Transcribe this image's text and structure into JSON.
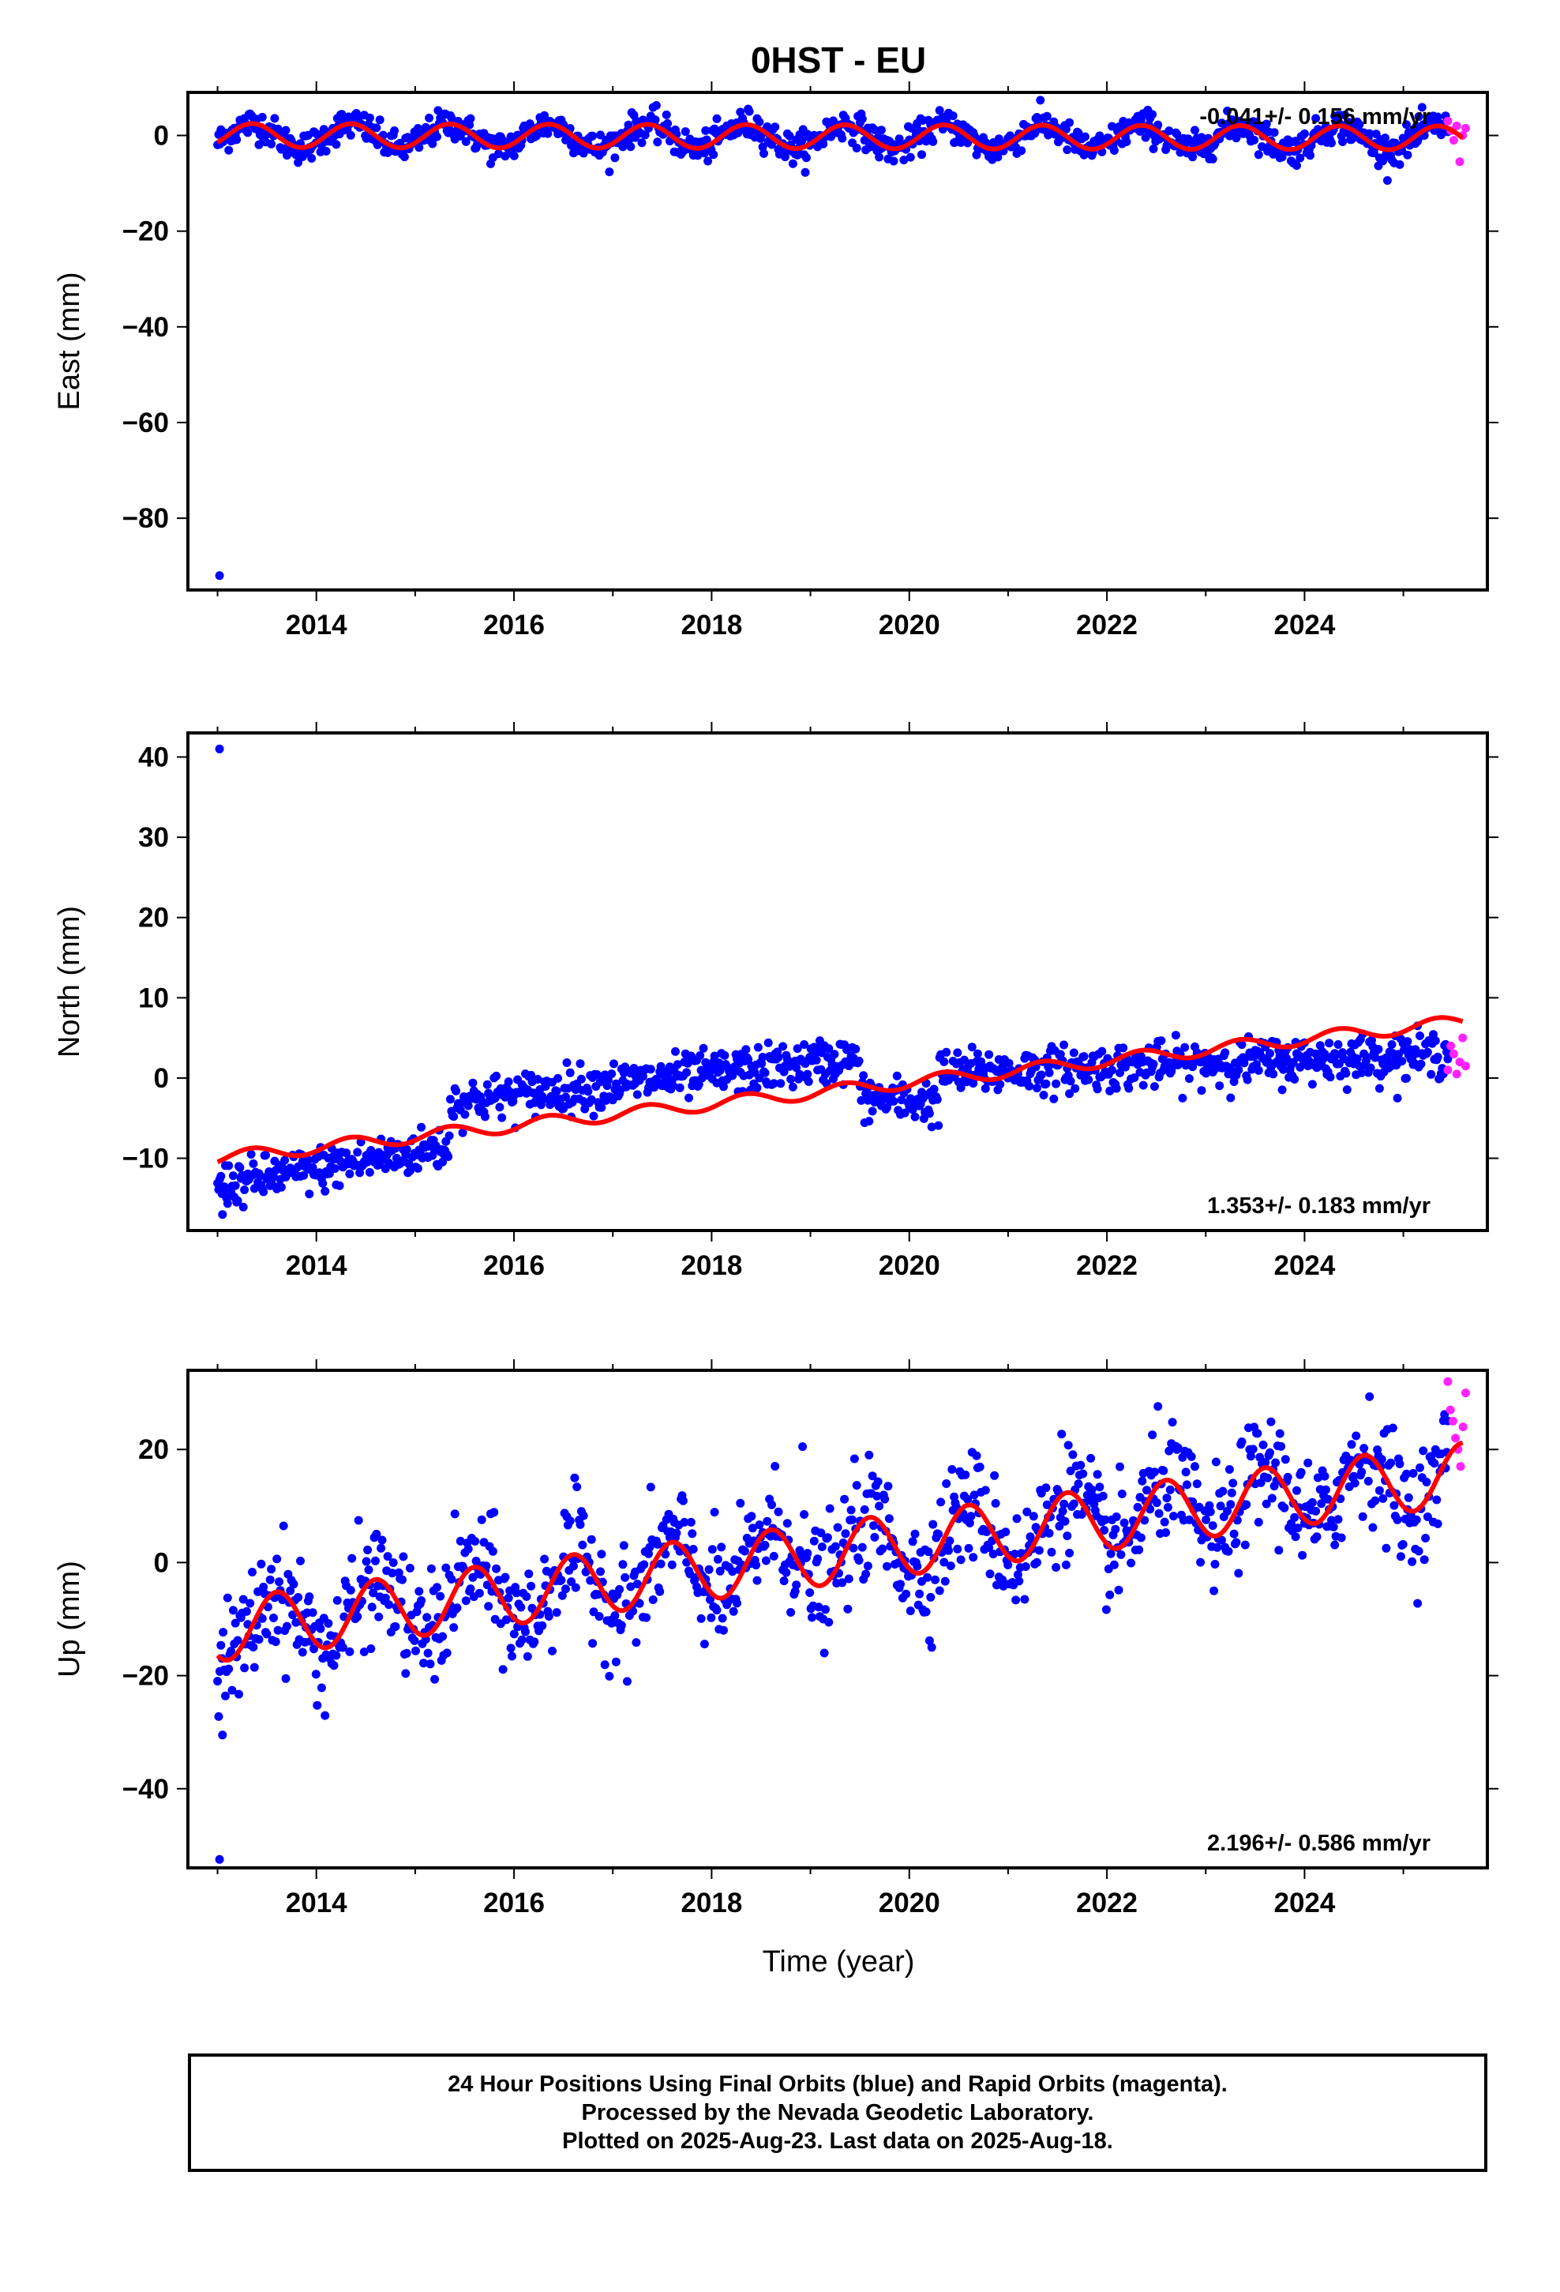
{
  "title": "0HST - EU",
  "xlabel": "Time (year)",
  "colors": {
    "final": "#0000ff",
    "rapid": "#ff22ff",
    "model": "#ff0000",
    "frame": "#000000"
  },
  "footer": {
    "line1": "24 Hour Positions Using Final Orbits (blue) and Rapid Orbits (magenta).",
    "line2": "Processed by the Nevada Geodetic Laboratory.",
    "line3": "Plotted on 2025-Aug-23. Last data on 2025-Aug-18."
  },
  "chart_data": [
    {
      "type": "scatter",
      "component": "east",
      "ylabel": "East (mm)",
      "rate_text": "-0.041+/- 0.156 mm/yr",
      "xlim": [
        2012.7,
        2025.85
      ],
      "ylim": [
        -95,
        9
      ],
      "xticks": [
        2014,
        2016,
        2018,
        2020,
        2022,
        2024
      ],
      "yticks": [
        -80,
        -60,
        -40,
        -20,
        0
      ],
      "series": [
        {
          "name": "Final Orbits (blue)",
          "x_range": [
            2013.0,
            2025.45
          ],
          "trend_slope": -0.041,
          "annual_amplitude": 2.5,
          "annual_peak": 0.35,
          "scatter_sd": 1.6,
          "outliers": [
            [
              2013.02,
              -92
            ]
          ]
        },
        {
          "name": "Rapid Orbits (magenta)",
          "x_range": [
            2025.45,
            2025.63
          ],
          "values": [
            3,
            1,
            -1,
            2,
            -5.5,
            0,
            1.5
          ]
        },
        {
          "name": "model",
          "x_range": [
            2013.0,
            2025.6
          ],
          "trend_slope": -0.041,
          "offset": 0.0,
          "annual_amplitude": 2.5,
          "annual_peak": 0.35
        }
      ]
    },
    {
      "type": "scatter",
      "component": "north",
      "ylabel": "North (mm)",
      "rate_text": "1.353+/- 0.183 mm/yr",
      "xlim": [
        2012.7,
        2025.85
      ],
      "ylim": [
        -19,
        43
      ],
      "xticks": [
        2014,
        2016,
        2018,
        2020,
        2022,
        2024
      ],
      "yticks": [
        -10,
        0,
        10,
        20,
        30,
        40
      ],
      "series": [
        {
          "name": "Final Orbits (blue)",
          "x_range": [
            2013.0,
            2025.45
          ],
          "scatter_sd": 1.4,
          "segments": [
            {
              "from": 2013.0,
              "to": 2015.35,
              "start": -13.5,
              "end": -8.5
            },
            {
              "from": 2015.35,
              "to": 2019.5,
              "start": -3.0,
              "end": 2.5
            },
            {
              "from": 2019.5,
              "to": 2020.3,
              "start": -2.5,
              "end": -3.0
            },
            {
              "from": 2020.3,
              "to": 2025.45,
              "start": 0.5,
              "end": 3.0
            }
          ],
          "outliers": [
            [
              2013.02,
              41
            ],
            [
              2013.05,
              -17
            ]
          ]
        },
        {
          "name": "Rapid Orbits (magenta)",
          "x_range": [
            2025.45,
            2025.63
          ],
          "values": [
            1,
            4,
            3,
            0.5,
            2,
            5,
            1.5
          ]
        },
        {
          "name": "model",
          "x_range": [
            2013.0,
            2025.6
          ],
          "trend_slope": 1.353,
          "offset": -10.0,
          "annual_amplitude": 0.8,
          "annual_peak": 0.35
        }
      ]
    },
    {
      "type": "scatter",
      "component": "up",
      "ylabel": "Up (mm)",
      "rate_text": "2.196+/- 0.586 mm/yr",
      "xlim": [
        2012.7,
        2025.85
      ],
      "ylim": [
        -54,
        34
      ],
      "xticks": [
        2014,
        2016,
        2018,
        2020,
        2022,
        2024
      ],
      "yticks": [
        -40,
        -20,
        0,
        20
      ],
      "series": [
        {
          "name": "Final Orbits (blue)",
          "x_range": [
            2013.0,
            2025.45
          ],
          "trend_slope": 2.196,
          "offset": -12.0,
          "annual_amplitude": 5.5,
          "annual_peak": 0.6,
          "scatter_sd": 5.0,
          "outliers": [
            [
              2013.02,
              -52.5
            ],
            [
              2013.05,
              -30.5
            ],
            [
              2018.92,
              20.5
            ]
          ]
        },
        {
          "name": "Rapid Orbits (magenta)",
          "x_range": [
            2025.45,
            2025.63
          ],
          "values": [
            32,
            27,
            25,
            22,
            20,
            17,
            24,
            30
          ]
        },
        {
          "name": "model",
          "x_range": [
            2013.0,
            2025.6
          ],
          "trend_slope": 2.196,
          "offset": -12.0,
          "annual_amplitude": 5.5,
          "annual_peak": 0.6
        }
      ]
    }
  ]
}
